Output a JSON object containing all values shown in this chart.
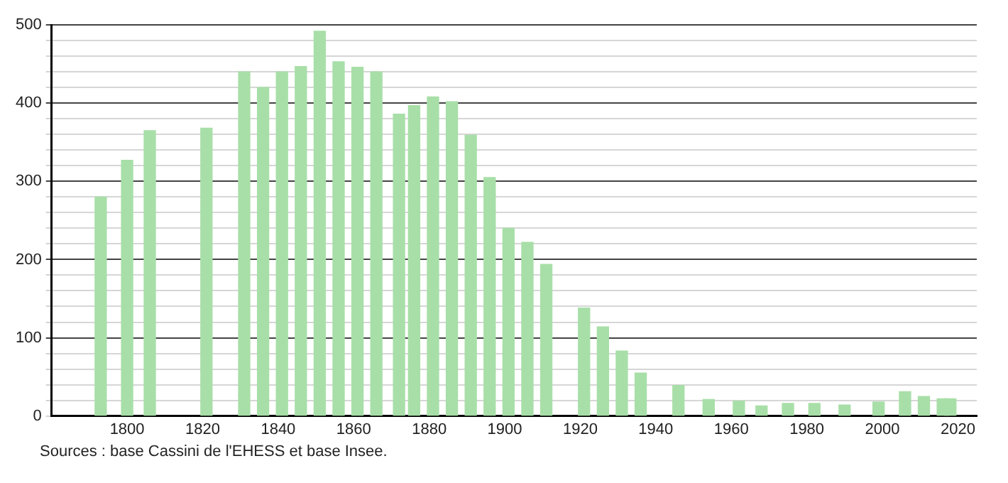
{
  "chart_data": {
    "type": "bar",
    "x": [
      1793,
      1800,
      1806,
      1821,
      1831,
      1836,
      1841,
      1846,
      1851,
      1856,
      1861,
      1866,
      1872,
      1876,
      1881,
      1886,
      1891,
      1896,
      1901,
      1906,
      1911,
      1921,
      1926,
      1931,
      1936,
      1946,
      1954,
      1962,
      1968,
      1975,
      1982,
      1990,
      1999,
      2006,
      2011,
      2016,
      2018
    ],
    "values": [
      280,
      327,
      365,
      368,
      440,
      420,
      440,
      447,
      492,
      453,
      446,
      440,
      386,
      397,
      408,
      402,
      359,
      305,
      240,
      222,
      194,
      138,
      114,
      83,
      55,
      39,
      21,
      19,
      13,
      16,
      16,
      14,
      18,
      31,
      25,
      22,
      22
    ],
    "color": "#a8dfa8",
    "xlim": [
      1780,
      2025
    ],
    "xticks": [
      1800,
      1820,
      1840,
      1860,
      1880,
      1900,
      1920,
      1940,
      1960,
      1980,
      2000,
      2020
    ],
    "ylim": [
      0,
      500
    ],
    "yticks": [
      0,
      {
        "value": 20,
        "label": null
      },
      {
        "value": 40,
        "label": null
      },
      {
        "value": 60,
        "label": null
      },
      {
        "value": 80,
        "label": null
      },
      100,
      {
        "value": 120,
        "label": null
      },
      {
        "value": 140,
        "label": null
      },
      {
        "value": 160,
        "label": null
      },
      {
        "value": 180,
        "label": null
      },
      200,
      {
        "value": 220,
        "label": null
      },
      {
        "value": 240,
        "label": null
      },
      {
        "value": 260,
        "label": null
      },
      {
        "value": 280,
        "label": null
      },
      300,
      {
        "value": 320,
        "label": null
      },
      {
        "value": 340,
        "label": null
      },
      {
        "value": 360,
        "label": null
      },
      {
        "value": 380,
        "label": null
      },
      400,
      {
        "value": 420,
        "label": null
      },
      {
        "value": 440,
        "label": null
      },
      {
        "value": 460,
        "label": null
      },
      {
        "value": 480,
        "label": null
      },
      500
    ],
    "grid": "y",
    "annotations": [
      "Sources : base Cassini de l'EHESS et base Insee."
    ]
  }
}
